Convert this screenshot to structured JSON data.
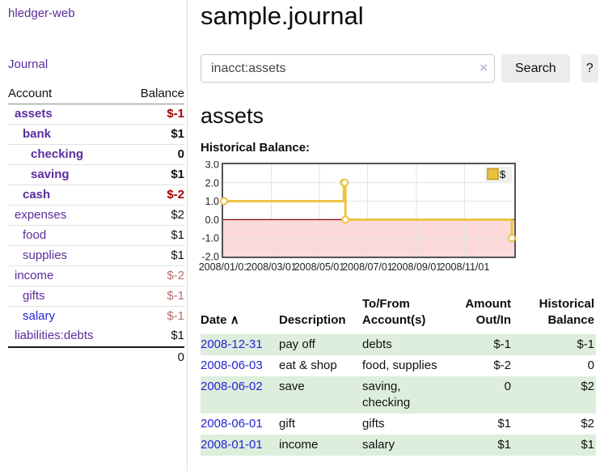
{
  "app": {
    "brand": "hledger-web"
  },
  "nav": {
    "journal": "Journal"
  },
  "accounts_panel": {
    "col_account": "Account",
    "col_balance": "Balance",
    "rows": [
      {
        "label": "assets",
        "balance": "$-1",
        "indent": 1,
        "emph": true,
        "name_color": "purple",
        "bal_color": "neg-strong"
      },
      {
        "label": "bank",
        "balance": "$1",
        "indent": 2,
        "emph": true,
        "name_color": "purple",
        "bal_color": "plain"
      },
      {
        "label": "checking",
        "balance": "0",
        "indent": 3,
        "emph": true,
        "name_color": "purple",
        "bal_color": "plain"
      },
      {
        "label": "saving",
        "balance": "$1",
        "indent": 3,
        "emph": true,
        "name_color": "purple",
        "bal_color": "plain"
      },
      {
        "label": "cash",
        "balance": "$-2",
        "indent": 2,
        "emph": true,
        "name_color": "purple",
        "bal_color": "neg-strong"
      },
      {
        "label": "expenses",
        "balance": "$2",
        "indent": 1,
        "emph": false,
        "name_color": "purple",
        "bal_color": "plain"
      },
      {
        "label": "food",
        "balance": "$1",
        "indent": 2,
        "emph": false,
        "name_color": "purple",
        "bal_color": "plain"
      },
      {
        "label": "supplies",
        "balance": "$1",
        "indent": 2,
        "emph": false,
        "name_color": "purple",
        "bal_color": "plain"
      },
      {
        "label": "income",
        "balance": "$-2",
        "indent": 1,
        "emph": false,
        "name_color": "purple",
        "bal_color": "neg-soft"
      },
      {
        "label": "gifts",
        "balance": "$-1",
        "indent": 2,
        "emph": false,
        "name_color": "purple",
        "bal_color": "neg-soft"
      },
      {
        "label": "salary",
        "balance": "$-1",
        "indent": 2,
        "emph": false,
        "name_color": "blue",
        "bal_color": "neg-soft"
      },
      {
        "label": "liabilities:debts",
        "balance": "$1",
        "indent": 1,
        "emph": false,
        "name_color": "purple",
        "bal_color": "plain"
      }
    ],
    "total": "0"
  },
  "header": {
    "title": "sample.journal"
  },
  "search": {
    "value": "inacct:assets",
    "clear": "×",
    "button_label": "Search",
    "help_label": "?"
  },
  "account_page": {
    "heading": "assets"
  },
  "chart_data": {
    "type": "line",
    "style": "steps",
    "title": "Historical Balance:",
    "series": [
      {
        "name": "$",
        "color": "#edc240",
        "points": [
          [
            "2008/01/01",
            1
          ],
          [
            "2008/06/01",
            2
          ],
          [
            "2008/06/02",
            2
          ],
          [
            "2008/06/03",
            0
          ],
          [
            "2008/12/31",
            -1
          ]
        ]
      }
    ],
    "x_ticks": [
      "2008/01/01",
      "2008/03/01",
      "2008/05/01",
      "2008/07/01",
      "2008/09/01",
      "2008/11/01"
    ],
    "y_ticks": [
      3.0,
      2.0,
      1.0,
      0.0,
      -1.0,
      -2.0
    ],
    "xlim": [
      "2008/01/01",
      "2008/12/31"
    ],
    "ylim": [
      -2,
      3
    ],
    "grid": true,
    "legend_position": "top-right",
    "negative_region_color": "#fcdada",
    "zero_line_color": "#8b0000",
    "grid_color": "#e3e3e3",
    "border_color": "#545454"
  },
  "register": {
    "headers": {
      "date": "Date",
      "sort_icon": "∧",
      "description": "Description",
      "accounts": "To/From\nAccount(s)",
      "amount": "Amount\nOut/In",
      "balance": "Historical\nBalance"
    },
    "rows": [
      {
        "date": "2008-12-31",
        "description": "pay off",
        "accounts": "debts",
        "amount": "$-1",
        "amount_neg": true,
        "balance": "$-1",
        "balance_neg": true
      },
      {
        "date": "2008-06-03",
        "description": "eat & shop",
        "accounts": "food, supplies",
        "amount": "$-2",
        "amount_neg": true,
        "balance": "0",
        "balance_neg": false
      },
      {
        "date": "2008-06-02",
        "description": "save",
        "accounts": "saving, checking",
        "amount": "0",
        "amount_neg": false,
        "balance": "$2",
        "balance_neg": false
      },
      {
        "date": "2008-06-01",
        "description": "gift",
        "accounts": "gifts",
        "amount": "$1",
        "amount_neg": false,
        "balance": "$2",
        "balance_neg": false
      },
      {
        "date": "2008-01-01",
        "description": "income",
        "accounts": "salary",
        "amount": "$1",
        "amount_neg": false,
        "balance": "$1",
        "balance_neg": false
      }
    ]
  }
}
